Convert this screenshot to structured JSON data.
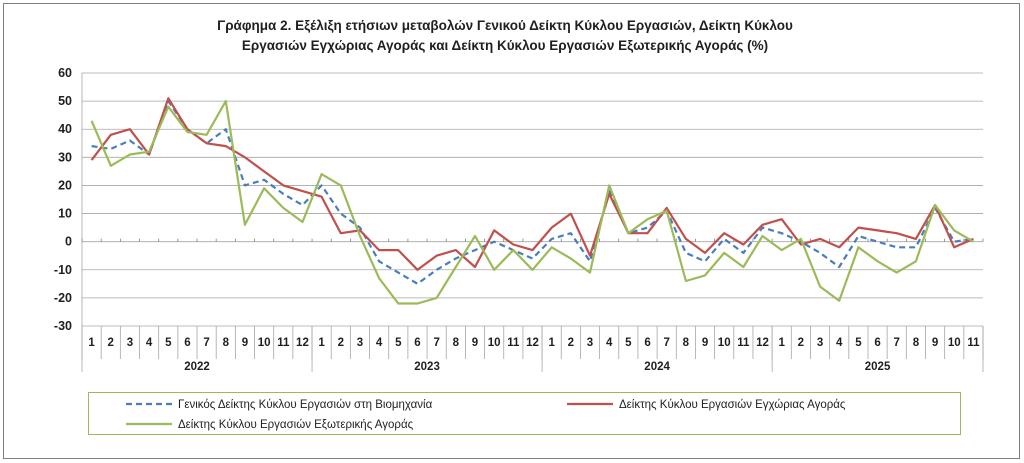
{
  "chart_data": {
    "type": "line",
    "title_line1": "Γράφημα 2. Εξέλιξη ετήσιων μεταβολών Γενικού Δείκτη Κύκλου Εργασιών,  Δείκτη Κύκλου",
    "title_line2": "Εργασιών Εγχώριας Αγοράς και Δείκτη Κύκλου Εργασιών Εξωτερικής Αγοράς (%)",
    "ylim": [
      -30,
      60
    ],
    "yticks": [
      "60",
      "50",
      "40",
      "30",
      "20",
      "10",
      "0",
      "-10",
      "-20",
      "-30"
    ],
    "grid": true,
    "legend_position": "bottom",
    "years": [
      {
        "label": "2022",
        "months": [
          "1",
          "2",
          "3",
          "4",
          "5",
          "6",
          "7",
          "8",
          "9",
          "10",
          "11",
          "12"
        ]
      },
      {
        "label": "2023",
        "months": [
          "1",
          "2",
          "3",
          "4",
          "5",
          "6",
          "7",
          "8",
          "9",
          "10",
          "11",
          "12"
        ]
      },
      {
        "label": "2024",
        "months": [
          "1",
          "2",
          "3",
          "4",
          "5",
          "6",
          "7",
          "8",
          "9",
          "10",
          "11",
          "12"
        ]
      },
      {
        "label": "2025",
        "months": [
          "1",
          "2",
          "3",
          "4",
          "5",
          "6",
          "7",
          "8",
          "9",
          "10",
          "11"
        ]
      }
    ],
    "series": [
      {
        "name": "Γενικός Δείκτης Κύκλου Εργασιών στη Βιομηχανία",
        "color": "#4a7ebb",
        "dash": "dashed",
        "values": [
          34,
          33,
          36,
          31,
          50,
          40,
          35,
          40,
          20,
          22,
          17,
          13,
          20,
          10,
          5,
          -7,
          -11,
          -15,
          -10,
          -6,
          -3,
          0,
          -3,
          -6,
          1,
          3,
          -7,
          18,
          3,
          5,
          11,
          -4,
          -7,
          1,
          -4,
          5,
          3,
          0,
          -4,
          -9,
          2,
          0,
          -2,
          -2,
          12,
          0,
          1
        ]
      },
      {
        "name": "Δείκτης Κύκλου Εργασιών Εγχώριας Αγοράς",
        "color": "#c0504d",
        "dash": "solid",
        "values": [
          29,
          38,
          40,
          31,
          51,
          40,
          35,
          34,
          30,
          25,
          20,
          18,
          16,
          3,
          4,
          -3,
          -3,
          -10,
          -5,
          -3,
          -9,
          4,
          -1,
          -3,
          5,
          10,
          -5,
          17,
          3,
          3,
          12,
          1,
          -4,
          3,
          -1,
          6,
          8,
          -1,
          1,
          -2,
          5,
          4,
          3,
          1,
          13,
          -2,
          1
        ]
      },
      {
        "name": "Δείκτης Κύκλου Εργασιών Εξωτερικής Αγοράς",
        "color": "#9bbb59",
        "dash": "solid",
        "values": [
          43,
          27,
          31,
          32,
          48,
          39,
          38,
          50,
          6,
          19,
          12,
          7,
          24,
          20,
          2,
          -13,
          -22,
          -22,
          -20,
          -9,
          2,
          -10,
          -3,
          -10,
          -2,
          -6,
          -11,
          20,
          3,
          8,
          11,
          -14,
          -12,
          -4,
          -9,
          2,
          -3,
          1,
          -16,
          -21,
          -2,
          -7,
          -11,
          -7,
          13,
          4,
          0
        ]
      }
    ]
  }
}
